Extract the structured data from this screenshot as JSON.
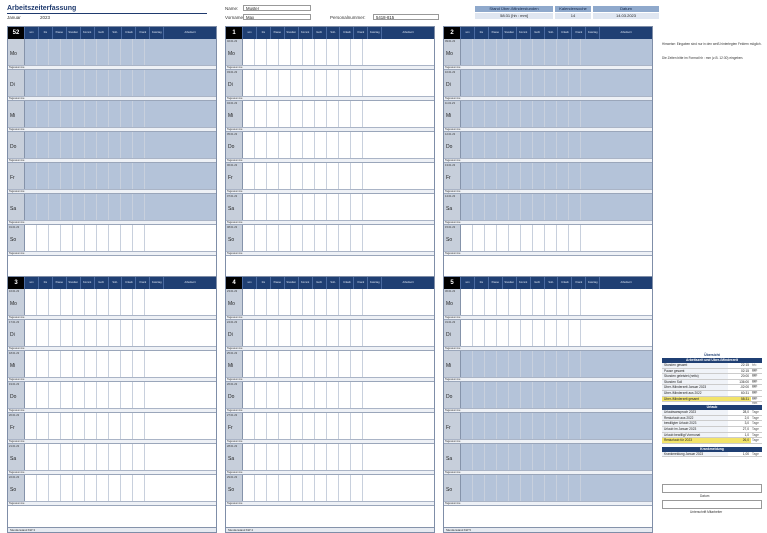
{
  "header": {
    "title": "Arbeitszeiterfassung",
    "month": "Januar",
    "year": "2023",
    "name_label": "Name:",
    "name_value": "Muster",
    "firstname_label": "Vorname:",
    "firstname_value": "Max",
    "personnel_label": "Personalnummer:",
    "personnel_value": "5418-815",
    "balance_label": "Stand Über-/Minderstunden",
    "balance_value": "58:31   [hh : mm]",
    "calendarweek_label": "Kalenderwoche",
    "calendarweek_value": "14",
    "date_label": "Datum",
    "date_value": "14.03.2023"
  },
  "column_headers": [
    "von",
    "bis",
    "Pause",
    "Stunden gesamt",
    "Kommt",
    "Geht",
    "Soll-Stunden",
    "Urlaub",
    "Krank",
    "Feiertag",
    "Arbeitsort"
  ],
  "weeks": [
    {
      "number": "52",
      "days": [
        "Mo",
        "Di",
        "Mi",
        "Do",
        "Fr",
        "Sa",
        "So"
      ],
      "dates": [
        "",
        "",
        "",
        "",
        "",
        "",
        "01.01.23"
      ],
      "footer": "Stundenstand KW 52"
    },
    {
      "number": "1",
      "days": [
        "Mo",
        "Di",
        "Mi",
        "Do",
        "Fr",
        "Sa",
        "So"
      ],
      "dates": [
        "02.01.23",
        "03.01.23",
        "04.01.23",
        "05.01.23",
        "06.01.23",
        "07.01.23",
        "08.01.23"
      ],
      "footer": "Stundenstand KW 1"
    },
    {
      "number": "2",
      "days": [
        "Mo",
        "Di",
        "Mi",
        "Do",
        "Fr",
        "Sa",
        "So"
      ],
      "dates": [
        "09.01.23",
        "10.01.23",
        "11.01.23",
        "12.01.23",
        "13.01.23",
        "14.01.23",
        "15.01.23"
      ],
      "footer": "Stundenstand KW 2"
    },
    {
      "number": "3",
      "days": [
        "Mo",
        "Di",
        "Mi",
        "Do",
        "Fr",
        "Sa",
        "So"
      ],
      "dates": [
        "16.01.23",
        "17.01.23",
        "18.01.23",
        "19.01.23",
        "20.01.23",
        "21.01.23",
        "22.01.23"
      ],
      "footer": "Stundenstand KW 3"
    },
    {
      "number": "4",
      "days": [
        "Mo",
        "Di",
        "Mi",
        "Do",
        "Fr",
        "Sa",
        "So"
      ],
      "dates": [
        "23.01.23",
        "24.01.23",
        "25.01.23",
        "26.01.23",
        "27.01.23",
        "28.01.23",
        "29.01.23"
      ],
      "footer": "Stundenstand KW 4"
    },
    {
      "number": "5",
      "days": [
        "Mo",
        "Di",
        "Mi",
        "Do",
        "Fr",
        "Sa",
        "So"
      ],
      "dates": [
        "30.01.23",
        "31.01.23",
        "",
        "",
        "",
        "",
        ""
      ],
      "footer": "Stundenstand KW 5"
    }
  ],
  "summary_label": "Tagessumme",
  "notes": {
    "line1": "Hinweise: Eingaben sind nur in den weiß hinterlegten Feldern möglich.",
    "line2": "Die Zeiten bitte im Format hh : mm (z.B. 12:30) eingeben."
  },
  "overview": {
    "title": "Übersicht",
    "subtitle": "Arbeitszeit und Über-/Minderzeit",
    "rows": [
      {
        "k": "Stunden gesamt",
        "v": "22:15",
        "u": "hh : mm"
      },
      {
        "k": "Pause gesamt",
        "v": "02:15",
        "u": "hh : mm"
      },
      {
        "k": "Stunden geleistet (netto)",
        "v": "20:00",
        "u": "hh : mm"
      },
      {
        "k": "Stunden Soll",
        "v": "136:00",
        "u": "hh : mm"
      },
      {
        "k": "Über-/Minderzeit Januar 2023",
        "v": "-02:00",
        "u": "hh : mm"
      },
      {
        "k": "Über-/Minderzeit aus 2022",
        "v": "60:31",
        "u": "hh : mm"
      },
      {
        "k": "Über-/Minderzeit gesamt",
        "v": "58:31",
        "u": "hh : mm"
      }
    ],
    "vacation_title": "Urlaub",
    "vacation_rows": [
      {
        "k": "Urlaubsanspruch 2023",
        "v": "28,0",
        "u": "Tage"
      },
      {
        "k": "Resturlaub aus 2022",
        "v": "2,0",
        "u": "Tage"
      },
      {
        "k": "bewilligter Urlaub 2023",
        "v": "3,0",
        "u": "Tage"
      },
      {
        "k": "Urlaub im Januar 2023",
        "v": "27,0",
        "u": "Tage"
      },
      {
        "k": "Urlaub bewilligt Vormonat",
        "v": "1,0",
        "u": "Tage"
      },
      {
        "k": "Resturlaub für 2023",
        "v": "26,0",
        "u": "Tage"
      }
    ],
    "sick_title": "Krankmeldung",
    "sick_rows": [
      {
        "k": "Krankmeldung Januar 2023",
        "v": "1,00",
        "u": "Tage"
      }
    ],
    "date_label": "Datum",
    "signature_label": "Unterschrift Mitarbeiter"
  }
}
